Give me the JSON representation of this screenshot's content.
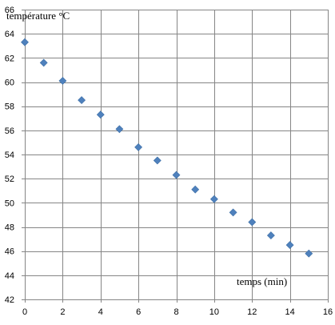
{
  "chart_data": {
    "type": "scatter",
    "ylabel": "température °C",
    "xlabel": "temps (min)",
    "xlim": [
      0,
      16
    ],
    "ylim": [
      42,
      66
    ],
    "x_ticks": [
      0,
      2,
      4,
      6,
      8,
      10,
      12,
      14,
      16
    ],
    "y_ticks": [
      42,
      44,
      46,
      48,
      50,
      52,
      54,
      56,
      58,
      60,
      62,
      64,
      66
    ],
    "grid": true,
    "marker": "diamond",
    "marker_color": "#4f81bd",
    "series": [
      {
        "x": [
          0,
          1,
          2,
          3,
          4,
          5,
          6,
          7,
          8,
          9,
          10,
          11,
          12,
          13,
          14,
          15
        ],
        "y": [
          63.3,
          61.6,
          60.1,
          58.5,
          57.3,
          56.1,
          54.6,
          53.5,
          52.3,
          51.1,
          50.3,
          49.2,
          48.4,
          47.3,
          46.5,
          45.8
        ]
      }
    ]
  }
}
